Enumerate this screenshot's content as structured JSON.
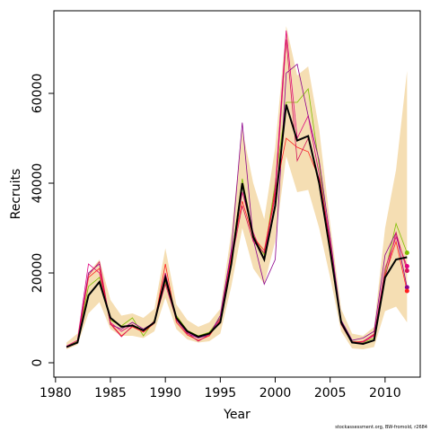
{
  "chart_data": {
    "type": "line",
    "xlabel": "Year",
    "ylabel": "Recruits",
    "note": "stockassessment.org, BW-fromold, r2684",
    "x": [
      1981,
      1982,
      1983,
      1984,
      1985,
      1986,
      1987,
      1988,
      1989,
      1990,
      1991,
      1992,
      1993,
      1994,
      1995,
      1996,
      1997,
      1998,
      1999,
      2000,
      2001,
      2002,
      2003,
      2004,
      2005,
      2006,
      2007,
      2008,
      2009,
      2010,
      2011,
      2012
    ],
    "xlim": [
      1979.85,
      2013.2
    ],
    "ylim": [
      -3200,
      78400
    ],
    "xticks": [
      1980,
      1985,
      1990,
      1995,
      2000,
      2005,
      2010
    ],
    "yticks": [
      0,
      20000,
      40000,
      60000
    ],
    "band": {
      "color": "#f5deb3",
      "upper": [
        4500,
        6500,
        20000,
        23000,
        14000,
        10500,
        11000,
        10000,
        12000,
        25500,
        13000,
        9500,
        8000,
        9000,
        12000,
        29000,
        52000,
        40000,
        32000,
        48000,
        75000,
        64000,
        66000,
        52000,
        31000,
        12000,
        6500,
        6000,
        8000,
        30000,
        43000,
        65000
      ],
      "lower": [
        3000,
        4000,
        11000,
        13500,
        7500,
        6000,
        6000,
        5500,
        7000,
        14500,
        7500,
        5200,
        4500,
        4800,
        6500,
        17000,
        30000,
        21000,
        17500,
        27000,
        46000,
        38000,
        38500,
        30000,
        19000,
        7000,
        3200,
        3000,
        3500,
        11500,
        12500,
        9000
      ]
    },
    "series": [
      {
        "color": "#7fbf00",
        "width": 0.8,
        "end_marker": true,
        "values": [
          3600,
          4800,
          17000,
          19000,
          9500,
          8200,
          10000,
          6000,
          9500,
          18000,
          10500,
          7200,
          6000,
          6800,
          10000,
          23000,
          41000,
          28500,
          24000,
          40000,
          58000,
          58000,
          61000,
          44000,
          26000,
          9200,
          4800,
          4500,
          5500,
          20000,
          31000,
          24500
        ]
      },
      {
        "color": "#e0007f",
        "width": 0.8,
        "end_marker": true,
        "values": [
          3700,
          5000,
          22000,
          20000,
          9000,
          7000,
          8500,
          7000,
          9300,
          20000,
          9800,
          6800,
          5600,
          6500,
          9800,
          24000,
          38000,
          29000,
          23000,
          39000,
          74000,
          50000,
          55000,
          42000,
          27000,
          8800,
          4700,
          4600,
          6000,
          21000,
          28000,
          21500
        ]
      },
      {
        "color": "#8b008b",
        "width": 0.8,
        "end_marker": true,
        "values": [
          3500,
          4600,
          20000,
          22000,
          8500,
          7500,
          9000,
          7500,
          9000,
          18500,
          9500,
          6500,
          5500,
          6200,
          10500,
          25000,
          53500,
          27500,
          17500,
          23000,
          64500,
          66500,
          55000,
          45000,
          28000,
          9500,
          5000,
          5500,
          7000,
          24000,
          29000,
          16800
        ]
      },
      {
        "color": "#ff2020",
        "width": 0.8,
        "end_marker": true,
        "values": [
          3400,
          4400,
          19000,
          21000,
          8800,
          6000,
          8000,
          6800,
          8800,
          22000,
          9000,
          6200,
          5000,
          6000,
          9500,
          23500,
          36000,
          28000,
          25000,
          38000,
          50000,
          48000,
          47000,
          41000,
          26500,
          8700,
          4500,
          4800,
          6200,
          19500,
          27000,
          16000
        ]
      },
      {
        "color": "#d4145a",
        "width": 0.8,
        "end_marker": true,
        "values": [
          3500,
          4500,
          19500,
          22500,
          8600,
          5800,
          8200,
          7100,
          9100,
          17500,
          9700,
          6600,
          4800,
          6300,
          9200,
          22500,
          35000,
          27000,
          24500,
          37000,
          72000,
          45000,
          50000,
          40500,
          26000,
          8500,
          4400,
          4700,
          6400,
          19000,
          29000,
          20500
        ]
      },
      {
        "color": "#000000",
        "width": 2,
        "end_marker": false,
        "values": [
          3500,
          4500,
          15000,
          18000,
          10000,
          8000,
          8300,
          7200,
          9000,
          19000,
          10000,
          7000,
          5800,
          6500,
          9000,
          22000,
          40000,
          28000,
          23000,
          35000,
          57500,
          49500,
          50500,
          40000,
          25000,
          9000,
          4500,
          4200,
          5000,
          19000,
          23000,
          23500
        ]
      }
    ]
  }
}
